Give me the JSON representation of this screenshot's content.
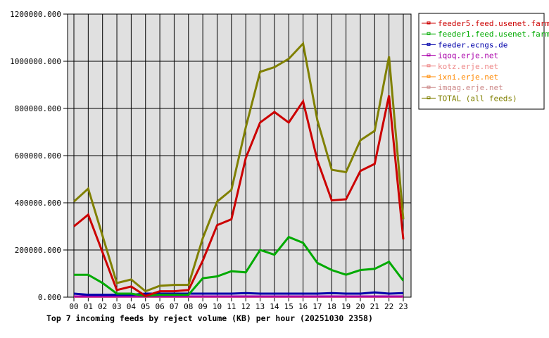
{
  "chart_data": {
    "type": "line",
    "title": "Top 7 incoming feeds by reject volume (KB) per hour (20251030 2358)",
    "xlabel": "",
    "ylabel": "",
    "ylim": [
      0,
      1200000
    ],
    "yticks": [
      "0.000",
      "200000.000",
      "400000.000",
      "600000.000",
      "800000.000",
      "1000000.000",
      "1200000.000"
    ],
    "grid": true,
    "legend_position": "right",
    "categories": [
      "00",
      "01",
      "02",
      "03",
      "04",
      "05",
      "06",
      "07",
      "08",
      "09",
      "10",
      "11",
      "12",
      "13",
      "14",
      "15",
      "16",
      "17",
      "18",
      "19",
      "20",
      "21",
      "22",
      "23"
    ],
    "series": [
      {
        "name": "feeder5.feed.usenet.farm",
        "color": "#cc0000",
        "values": [
          300000,
          350000,
          190000,
          30000,
          45000,
          5000,
          25000,
          25000,
          30000,
          155000,
          305000,
          330000,
          590000,
          740000,
          785000,
          740000,
          830000,
          580000,
          410000,
          415000,
          535000,
          565000,
          855000,
          245000
        ]
      },
      {
        "name": "feeder1.feed.usenet.farm",
        "color": "#00aa00",
        "values": [
          95000,
          95000,
          60000,
          15000,
          15000,
          5000,
          10000,
          10000,
          10000,
          80000,
          88000,
          110000,
          105000,
          200000,
          180000,
          255000,
          230000,
          145000,
          115000,
          95000,
          115000,
          120000,
          150000,
          70000
        ]
      },
      {
        "name": "feeder.ecngs.de",
        "color": "#0000aa",
        "values": [
          15000,
          10000,
          10000,
          10000,
          10000,
          15000,
          15000,
          15000,
          15000,
          15000,
          15000,
          15000,
          17000,
          15000,
          15000,
          15000,
          15000,
          15000,
          17000,
          15000,
          15000,
          20000,
          15000,
          17000
        ]
      },
      {
        "name": "iqoq.erje.net",
        "color": "#aa00aa",
        "values": [
          3000,
          3000,
          3000,
          3000,
          3000,
          3000,
          3000,
          3000,
          3000,
          3000,
          3000,
          3000,
          3000,
          3000,
          3000,
          3000,
          3000,
          3000,
          3000,
          3000,
          3000,
          3000,
          3000,
          3000
        ]
      },
      {
        "name": "kotz.erje.net",
        "color": "#ee8888",
        "values": [
          2000,
          2000,
          2000,
          2000,
          2000,
          2000,
          2000,
          2000,
          2000,
          2000,
          2000,
          2000,
          2000,
          2000,
          2000,
          2000,
          2000,
          2000,
          2000,
          2000,
          2000,
          2000,
          2000,
          2000
        ]
      },
      {
        "name": "ixni.erje.net",
        "color": "#ff8800",
        "values": [
          2000,
          2000,
          2000,
          2000,
          5000,
          2000,
          2000,
          2000,
          2000,
          2000,
          2000,
          2000,
          2000,
          2000,
          2000,
          2000,
          2000,
          2000,
          2000,
          2000,
          2000,
          2000,
          2000,
          2000
        ]
      },
      {
        "name": "imqag.erje.net",
        "color": "#cc8888",
        "values": [
          2000,
          2000,
          2000,
          2000,
          2000,
          2000,
          2000,
          2000,
          2000,
          2000,
          2000,
          2000,
          2000,
          2000,
          2000,
          2000,
          2000,
          2000,
          2000,
          2000,
          2000,
          2000,
          2000,
          2000
        ]
      },
      {
        "name": "TOTAL (all feeds)",
        "color": "#808000",
        "values": [
          405000,
          460000,
          260000,
          60000,
          75000,
          25000,
          48000,
          52000,
          52000,
          250000,
          405000,
          455000,
          720000,
          955000,
          975000,
          1010000,
          1075000,
          750000,
          540000,
          530000,
          665000,
          705000,
          1020000,
          330000
        ]
      }
    ]
  },
  "colors": {
    "plot_background": "#e0e0e0",
    "grid": "#000000",
    "axis": "#000000"
  }
}
